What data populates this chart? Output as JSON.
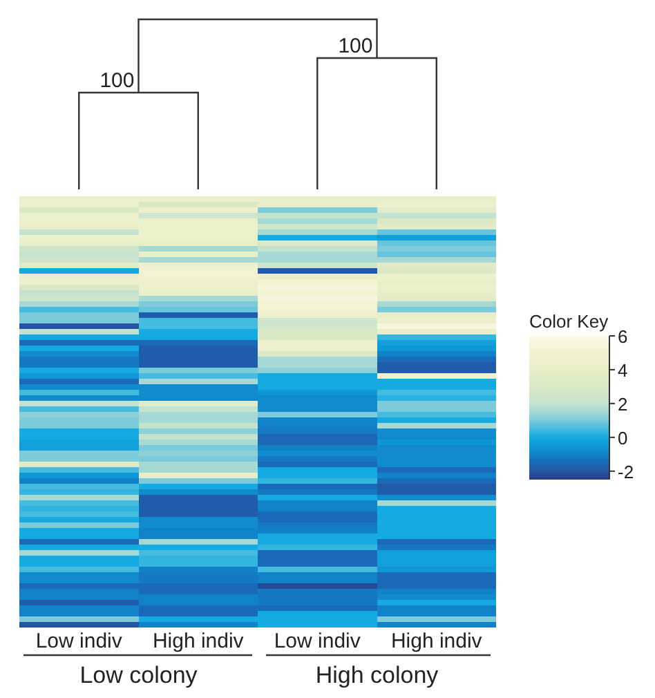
{
  "chart_data": {
    "type": "heatmap",
    "categories": [
      "Low indiv",
      "High indiv",
      "Low indiv",
      "High indiv"
    ],
    "y_categories": [
      null,
      null,
      null,
      null,
      null,
      null,
      null,
      null,
      null,
      null,
      null,
      null,
      null,
      null,
      null,
      null,
      null,
      null,
      null,
      null,
      null,
      null,
      null,
      null,
      null,
      null,
      null,
      null,
      null,
      null,
      null,
      null,
      null,
      null,
      null,
      null,
      null,
      null,
      null,
      null,
      null,
      null,
      null,
      null,
      null,
      null,
      null,
      null,
      null,
      null,
      null,
      null,
      null,
      null,
      null,
      null,
      null,
      null,
      null,
      null,
      null,
      null,
      null,
      null,
      null,
      null,
      null,
      null,
      null,
      null,
      null,
      null,
      null,
      null,
      null,
      null,
      null,
      null
    ],
    "cells": [
      [
        4.5,
        4.5,
        4,
        4
      ],
      [
        4.5,
        3,
        4,
        4.5
      ],
      [
        3,
        4.5,
        1,
        3.5
      ],
      [
        4.5,
        2.5,
        2,
        2
      ],
      [
        4.5,
        4.5,
        1.5,
        3
      ],
      [
        4,
        4.5,
        2.5,
        3.5
      ],
      [
        2,
        4.5,
        1.5,
        0.8
      ],
      [
        4.5,
        4.5,
        0,
        -0.3
      ],
      [
        4,
        4,
        3,
        0.8
      ],
      [
        2.5,
        1.5,
        2,
        1
      ],
      [
        2,
        4,
        1.5,
        0.8
      ],
      [
        2.5,
        1.5,
        1.5,
        1.5
      ],
      [
        3.5,
        4.5,
        2.5,
        3.5
      ],
      [
        0,
        5,
        -1.8,
        3
      ],
      [
        4,
        5,
        4,
        4.5
      ],
      [
        4.5,
        4.5,
        5,
        4
      ],
      [
        3,
        4.5,
        5.5,
        4.5
      ],
      [
        2,
        4,
        5,
        4
      ],
      [
        2.5,
        1.5,
        5.5,
        3.5
      ],
      [
        1.5,
        1,
        5,
        1.5
      ],
      [
        0.5,
        0.8,
        5,
        1
      ],
      [
        1,
        -1.8,
        4.5,
        4
      ],
      [
        1,
        0.5,
        2.5,
        4.5
      ],
      [
        -2,
        0.5,
        2.5,
        5.5
      ],
      [
        2,
        0,
        3,
        4
      ],
      [
        0,
        0,
        3,
        0.3
      ],
      [
        -1.5,
        -1.5,
        4.5,
        -0.3
      ],
      [
        0,
        -1.8,
        4.5,
        -0.5
      ],
      [
        -0.8,
        -1.8,
        3,
        -1
      ],
      [
        -1.2,
        -1.8,
        1.5,
        -1.5
      ],
      [
        -1.2,
        -1.8,
        1.5,
        -1.8
      ],
      [
        0,
        1,
        1.2,
        -1.8
      ],
      [
        -0.5,
        0.5,
        0,
        4.5
      ],
      [
        -1.5,
        1.5,
        0,
        0
      ],
      [
        -0.8,
        -0.8,
        0,
        0
      ],
      [
        0.5,
        -0.8,
        -0.5,
        0.5
      ],
      [
        -0.8,
        -0.8,
        -0.8,
        0.2
      ],
      [
        2,
        3.5,
        -0.8,
        1
      ],
      [
        0.5,
        2,
        -0.8,
        1
      ],
      [
        1.2,
        1.5,
        1,
        0.5
      ],
      [
        1,
        1.5,
        -1,
        0
      ],
      [
        1,
        2,
        -1,
        1.5
      ],
      [
        0,
        1.2,
        -1.2,
        -0.8
      ],
      [
        0,
        2,
        -1.6,
        -0.8
      ],
      [
        -0.3,
        1.5,
        -1.6,
        -0.5
      ],
      [
        -0.3,
        1,
        -1,
        -0.8
      ],
      [
        1,
        1.2,
        -0.8,
        -0.8
      ],
      [
        1,
        1,
        -1.2,
        -0.8
      ],
      [
        3.5,
        1.5,
        -1.5,
        -0.8
      ],
      [
        0.5,
        1.5,
        0,
        -1.5
      ],
      [
        -0.5,
        4,
        0,
        -1
      ],
      [
        -1,
        1,
        0.3,
        -1.5
      ],
      [
        0.5,
        0,
        -1.5,
        -1.8
      ],
      [
        0.3,
        -0.8,
        -1.2,
        -1.8
      ],
      [
        1.5,
        -1.8,
        0,
        -0.8
      ],
      [
        0.5,
        -1.8,
        -1,
        1.5
      ],
      [
        0.3,
        -1.8,
        -1,
        0
      ],
      [
        0.5,
        -1.8,
        -1.5,
        0
      ],
      [
        0,
        -0.8,
        -1.5,
        0
      ],
      [
        1,
        -0.8,
        -1.2,
        0
      ],
      [
        0,
        -1,
        -1,
        0
      ],
      [
        0,
        -1,
        0,
        0
      ],
      [
        -1.5,
        1.5,
        0,
        -1.5
      ],
      [
        0,
        0,
        0.3,
        -1.2
      ],
      [
        1.5,
        0.5,
        -1.5,
        -0.3
      ],
      [
        0,
        0.3,
        -1.5,
        -0.3
      ],
      [
        0,
        0.3,
        -1.5,
        -0.3
      ],
      [
        0.5,
        -1,
        0.5,
        -0.5
      ],
      [
        -0.8,
        -1.2,
        -1,
        -1.5
      ],
      [
        -0.8,
        -1.2,
        -1,
        -1.5
      ],
      [
        -1.5,
        -1.5,
        -2.2,
        -1.5
      ],
      [
        -1,
        -1.5,
        -1.2,
        -1
      ],
      [
        -1,
        -1,
        -1.2,
        -0.8
      ],
      [
        -1.8,
        -1,
        -1.2,
        0
      ],
      [
        -1,
        -1.5,
        -1.5,
        -1
      ],
      [
        -1,
        -1.5,
        0,
        -1
      ],
      [
        1,
        0,
        0,
        1
      ],
      [
        -2,
        -1,
        0,
        -1
      ]
    ],
    "clabel": "Color Key",
    "clim": [
      -2.5,
      6
    ],
    "cticks": [
      -2,
      0,
      2,
      4,
      6
    ],
    "tick_labels": "x",
    "annotations": [
      "100",
      "100",
      "Low colony",
      "High colony"
    ]
  }
}
